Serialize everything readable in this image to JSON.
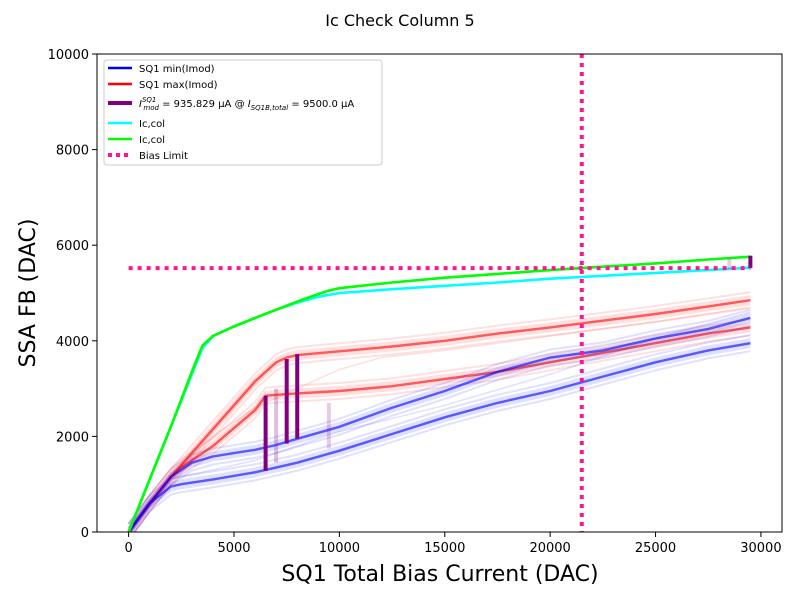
{
  "chart_data": {
    "type": "line",
    "title": "Ic Check Column 5",
    "xlabel": "SQ1 Total Bias Current (DAC)",
    "ylabel": "SSA FB (DAC)",
    "xlim": [
      -1500,
      31000
    ],
    "ylim": [
      0,
      10000
    ],
    "xticks": [
      0,
      5000,
      10000,
      15000,
      20000,
      25000,
      30000
    ],
    "yticks": [
      0,
      2000,
      4000,
      6000,
      8000,
      10000
    ],
    "grid": false,
    "legend_position": "top-left",
    "colors": {
      "min": "#0000ff",
      "max": "#ff0000",
      "imod": "#800080",
      "ic_cyan": "#00ffff",
      "ic_green": "#00ff00",
      "bias_limit": "#ff1493"
    },
    "legend": [
      {
        "label": "SQ1 min(Imod)",
        "color": "#0000ff",
        "style": "solid"
      },
      {
        "label": "SQ1 max(Imod)",
        "color": "#ff0000",
        "style": "solid"
      },
      {
        "label": "I_mod^SQ1 = 935.829 μA @ I_SQ1B,total = 9500.0 μA",
        "color": "#800080",
        "style": "solid"
      },
      {
        "label": "Ic,col",
        "color": "#00ffff",
        "style": "solid"
      },
      {
        "label": "Ic,col",
        "color": "#00ff00",
        "style": "solid"
      },
      {
        "label": "Bias Limit",
        "color": "#ff1493",
        "style": "dotted"
      }
    ],
    "legend_imod_parts": {
      "lead": "I",
      "sup": "SQ1",
      "sub": "mod",
      "mid": " = 935.829 μA @ ",
      "lead2": "I",
      "sub2": "SQ1B,total",
      "tail": " = 9500.0 μA"
    },
    "series": [
      {
        "role": "max_main",
        "color": "#ff0000",
        "x": [
          0,
          1000,
          2000,
          3000,
          4000,
          5000,
          6000,
          7000,
          7500,
          8000,
          10000,
          12500,
          15000,
          17500,
          20000,
          22500,
          25000,
          27500,
          29500
        ],
        "y": [
          0,
          600,
          1150,
          1650,
          2150,
          2650,
          3150,
          3550,
          3650,
          3700,
          3780,
          3880,
          4000,
          4150,
          4280,
          4420,
          4560,
          4720,
          4850
        ]
      },
      {
        "role": "max_lower",
        "color": "#ff0000",
        "x": [
          0,
          1000,
          2000,
          2500,
          4000,
          6000,
          6500,
          7000,
          8000,
          10000,
          12500,
          15000,
          17500,
          20000,
          22500,
          25000,
          27500,
          29500
        ],
        "y": [
          0,
          600,
          1150,
          1350,
          1800,
          2550,
          2850,
          2870,
          2900,
          2950,
          3050,
          3200,
          3350,
          3550,
          3750,
          3950,
          4150,
          4280
        ]
      },
      {
        "role": "min_upper",
        "color": "#0000ff",
        "x": [
          0,
          1000,
          2000,
          3000,
          4000,
          5000,
          6000,
          7000,
          8000,
          10000,
          12500,
          15000,
          17500,
          20000,
          22500,
          25000,
          27500,
          29500
        ],
        "y": [
          0,
          600,
          1150,
          1450,
          1580,
          1650,
          1720,
          1820,
          1950,
          2200,
          2600,
          2950,
          3350,
          3650,
          3800,
          4050,
          4250,
          4480
        ]
      },
      {
        "role": "min_lower",
        "color": "#0000ff",
        "x": [
          0,
          1000,
          2000,
          2500,
          4000,
          6000,
          8000,
          10000,
          12500,
          15000,
          17500,
          20000,
          22500,
          25000,
          27500,
          29500
        ],
        "y": [
          0,
          600,
          950,
          1000,
          1100,
          1250,
          1450,
          1700,
          2050,
          2400,
          2700,
          2950,
          3250,
          3550,
          3800,
          3950
        ]
      },
      {
        "role": "faint_red",
        "color": "#ff0000",
        "x": [
          0,
          2000,
          4000,
          6000,
          8000,
          10000,
          12000,
          15000,
          20000,
          25000,
          29500
        ],
        "y": [
          0,
          1200,
          2000,
          2600,
          3000,
          3400,
          3650,
          3800,
          4100,
          4400,
          4700
        ]
      },
      {
        "role": "faint_blue",
        "color": "#0000ff",
        "x": [
          0,
          2000,
          4000,
          6000,
          8000,
          10000,
          15000,
          20000,
          25000,
          29500
        ],
        "y": [
          0,
          1100,
          1300,
          1500,
          1800,
          2100,
          2650,
          3300,
          4050,
          4600
        ]
      },
      {
        "role": "ic_cyan",
        "color": "#00ffff",
        "x": [
          0,
          1000,
          2000,
          3000,
          3500,
          4000,
          5000,
          6000,
          7000,
          8000,
          9000,
          10000,
          12500,
          15000,
          17500,
          20000,
          22500,
          25000,
          27500,
          29500
        ],
        "y": [
          0,
          1100,
          2200,
          3300,
          3850,
          4100,
          4300,
          4480,
          4650,
          4800,
          4920,
          5000,
          5080,
          5150,
          5220,
          5300,
          5360,
          5420,
          5480,
          5530
        ]
      },
      {
        "role": "ic_green",
        "color": "#00ff00",
        "x": [
          0,
          1000,
          2000,
          3000,
          3500,
          4000,
          5000,
          6000,
          7000,
          8000,
          9000,
          9500,
          10000,
          12500,
          15000,
          17500,
          20000,
          22500,
          25000,
          27500,
          29500
        ],
        "y": [
          0,
          1100,
          2200,
          3350,
          3900,
          4100,
          4300,
          4480,
          4650,
          4820,
          4980,
          5050,
          5100,
          5220,
          5320,
          5400,
          5480,
          5550,
          5620,
          5700,
          5760
        ]
      }
    ],
    "imod_segments": [
      {
        "x": 6500,
        "y0": 1280,
        "y1": 2850,
        "alpha": 1.0
      },
      {
        "x": 7500,
        "y0": 1850,
        "y1": 3620,
        "alpha": 1.0
      },
      {
        "x": 8000,
        "y0": 1950,
        "y1": 3720,
        "alpha": 1.0
      },
      {
        "x": 7000,
        "y0": 1450,
        "y1": 3000,
        "alpha": 0.25
      },
      {
        "x": 9500,
        "y0": 1750,
        "y1": 2700,
        "alpha": 0.2
      },
      {
        "x": 29500,
        "y0": 5520,
        "y1": 5780,
        "alpha": 1.0
      },
      {
        "x": 28500,
        "y0": 5500,
        "y1": 5720,
        "alpha": 0.2
      }
    ],
    "bias_limit": {
      "x": 21500,
      "y": 5520
    }
  }
}
